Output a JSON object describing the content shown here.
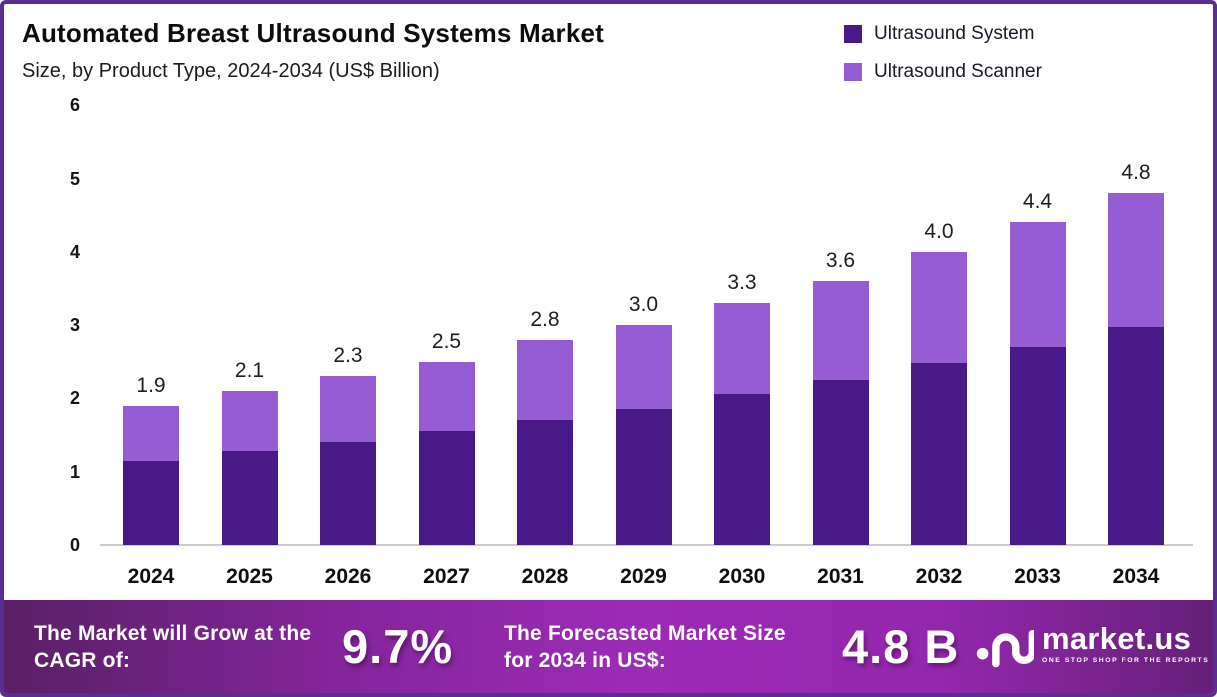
{
  "header": {
    "title": "Automated Breast Ultrasound Systems Market",
    "subtitle": "Size, by Product Type, 2024-2034 (US$ Billion)"
  },
  "legend": {
    "items": [
      {
        "label": "Ultrasound System",
        "color": "#491a87"
      },
      {
        "label": "Ultrasound Scanner",
        "color": "#965cd4"
      }
    ]
  },
  "chart_data": {
    "type": "bar",
    "stacked": true,
    "title": "Automated Breast Ultrasound Systems Market",
    "subtitle": "Size, by Product Type, 2024-2034 (US$ Billion)",
    "xlabel": "",
    "ylabel": "US$ Billion",
    "categories": [
      "2024",
      "2025",
      "2026",
      "2027",
      "2028",
      "2029",
      "2030",
      "2031",
      "2032",
      "2033",
      "2034"
    ],
    "series": [
      {
        "name": "Ultrasound System",
        "color": "#491a87",
        "values": [
          1.15,
          1.28,
          1.4,
          1.55,
          1.7,
          1.86,
          2.06,
          2.25,
          2.48,
          2.7,
          2.98
        ]
      },
      {
        "name": "Ultrasound Scanner",
        "color": "#965cd4",
        "values": [
          0.75,
          0.82,
          0.9,
          0.95,
          1.1,
          1.14,
          1.24,
          1.35,
          1.52,
          1.7,
          1.82
        ]
      }
    ],
    "totals": [
      1.9,
      2.1,
      2.3,
      2.5,
      2.8,
      3.0,
      3.3,
      3.6,
      4.0,
      4.4,
      4.8
    ],
    "total_labels": [
      "1.9",
      "2.1",
      "2.3",
      "2.5",
      "2.8",
      "3.0",
      "3.3",
      "3.6",
      "4.0",
      "4.4",
      "4.8"
    ],
    "ylim": [
      0,
      6
    ],
    "yticks": [
      0,
      1,
      2,
      3,
      4,
      5,
      6
    ],
    "grid": false,
    "legend_position": "top-right"
  },
  "footer": {
    "grow_text": "The Market will Grow at the CAGR of:",
    "cagr_value": "9.7%",
    "forecast_text": "The Forecasted Market Size for 2034 in US$:",
    "forecast_value": "4.8 B"
  },
  "branding": {
    "logo_name": "market.us",
    "logo_tagline": "ONE STOP SHOP FOR THE REPORTS",
    "logo_icon": "market-us-squiggle-icon"
  },
  "colors": {
    "border": "#5b2d90",
    "bar_dark": "#491a87",
    "bar_light": "#965cd4",
    "banner_left": "#5a2066",
    "banner_mid": "#9d2bb6",
    "banner_right": "#662079",
    "baseline": "#cccccc"
  }
}
